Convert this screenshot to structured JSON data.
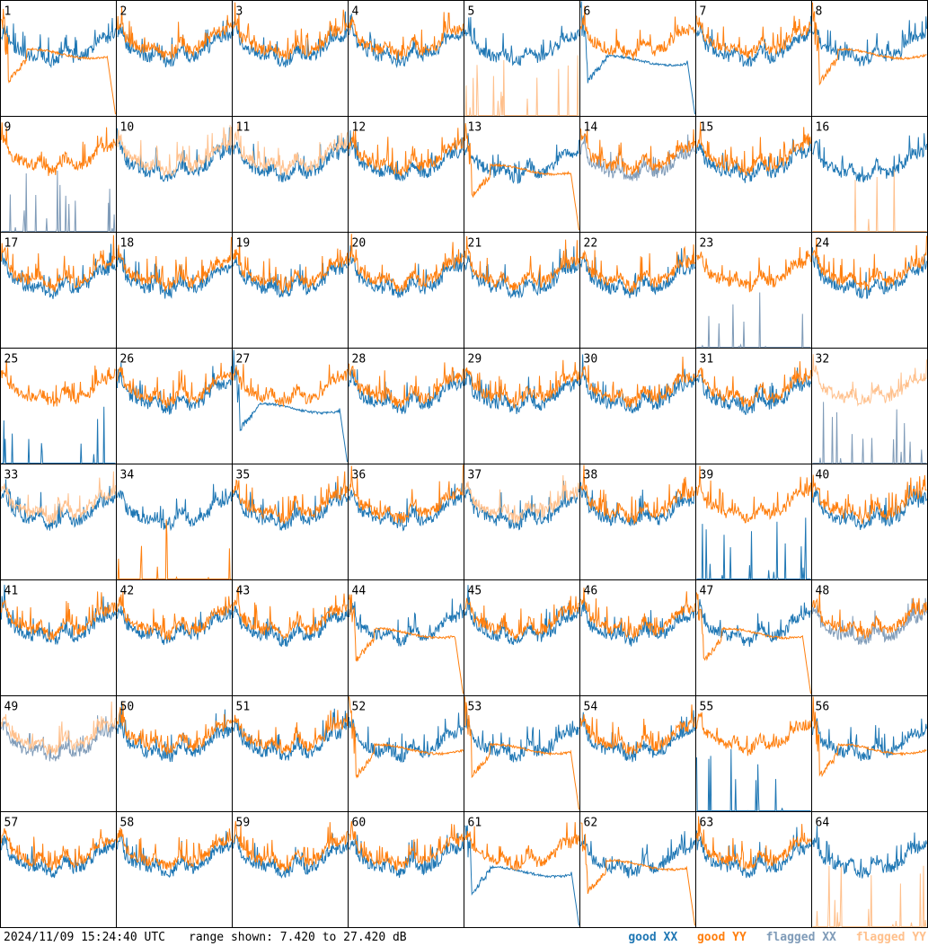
{
  "footer": {
    "timestamp": "2024/11/09 15:24:40 UTC",
    "range": "range shown: 7.420 to 27.420 dB"
  },
  "legend": {
    "good_xx": "good XX",
    "good_yy": "good YY",
    "flagged_xx": "flagged XX",
    "flagged_yy": "flagged YY"
  },
  "colors": {
    "good_xx": "#1f77b4",
    "good_yy": "#ff7f0e",
    "flagged_xx": "#7f9bb8",
    "flagged_yy": "#ffc08c"
  },
  "chart_data": {
    "type": "line",
    "layout": "8x8 small multiples",
    "ylim": [
      7.42,
      27.42
    ],
    "y_unit": "dB",
    "panels": [
      {
        "label": "1",
        "xx": "good",
        "yy": "good",
        "xx_shape": "spiky",
        "yy_shape": "flat_dip"
      },
      {
        "label": "2",
        "xx": "good",
        "yy": "good",
        "xx_shape": "spiky",
        "yy_shape": "spiky"
      },
      {
        "label": "3",
        "xx": "good",
        "yy": "good",
        "xx_shape": "spiky",
        "yy_shape": "spiky"
      },
      {
        "label": "4",
        "xx": "good",
        "yy": "good",
        "xx_shape": "spiky",
        "yy_shape": "spiky"
      },
      {
        "label": "5",
        "xx": "good",
        "yy": "flagged",
        "xx_shape": "spiky",
        "yy_shape": "low_spikes"
      },
      {
        "label": "6",
        "xx": "good",
        "yy": "good",
        "xx_shape": "flat_dip",
        "yy_shape": "spiky"
      },
      {
        "label": "7",
        "xx": "good",
        "yy": "good",
        "xx_shape": "spiky",
        "yy_shape": "spiky"
      },
      {
        "label": "8",
        "xx": "good",
        "yy": "good",
        "xx_shape": "spiky",
        "yy_shape": "flat"
      },
      {
        "label": "9",
        "xx": "flagged",
        "yy": "good",
        "xx_shape": "low_spikes",
        "yy_shape": "spiky"
      },
      {
        "label": "10",
        "xx": "good",
        "yy": "flagged",
        "xx_shape": "spiky",
        "yy_shape": "spiky"
      },
      {
        "label": "11",
        "xx": "good",
        "yy": "flagged",
        "xx_shape": "spiky",
        "yy_shape": "spiky"
      },
      {
        "label": "12",
        "xx": "good",
        "yy": "good",
        "xx_shape": "spiky",
        "yy_shape": "spiky"
      },
      {
        "label": "13",
        "xx": "good",
        "yy": "good",
        "xx_shape": "spiky",
        "yy_shape": "flat_dip"
      },
      {
        "label": "14",
        "xx": "flagged",
        "yy": "good",
        "xx_shape": "spiky",
        "yy_shape": "spiky"
      },
      {
        "label": "15",
        "xx": "good",
        "yy": "good",
        "xx_shape": "spiky",
        "yy_shape": "spiky"
      },
      {
        "label": "16",
        "xx": "good",
        "yy": "flagged",
        "xx_shape": "spiky",
        "yy_shape": "low_spikes"
      },
      {
        "label": "17",
        "xx": "good",
        "yy": "good",
        "xx_shape": "spiky",
        "yy_shape": "spiky"
      },
      {
        "label": "18",
        "xx": "good",
        "yy": "good",
        "xx_shape": "spiky",
        "yy_shape": "spiky"
      },
      {
        "label": "19",
        "xx": "good",
        "yy": "good",
        "xx_shape": "spiky",
        "yy_shape": "spiky"
      },
      {
        "label": "20",
        "xx": "good",
        "yy": "good",
        "xx_shape": "spiky",
        "yy_shape": "spiky"
      },
      {
        "label": "21",
        "xx": "good",
        "yy": "good",
        "xx_shape": "spiky",
        "yy_shape": "spiky"
      },
      {
        "label": "22",
        "xx": "good",
        "yy": "good",
        "xx_shape": "spiky",
        "yy_shape": "spiky"
      },
      {
        "label": "23",
        "xx": "flagged",
        "yy": "good",
        "xx_shape": "low_spikes",
        "yy_shape": "spiky"
      },
      {
        "label": "24",
        "xx": "good",
        "yy": "good",
        "xx_shape": "spiky",
        "yy_shape": "spiky"
      },
      {
        "label": "25",
        "xx": "good",
        "yy": "good",
        "xx_shape": "low_spikes",
        "yy_shape": "spiky"
      },
      {
        "label": "26",
        "xx": "good",
        "yy": "good",
        "xx_shape": "spiky",
        "yy_shape": "spiky"
      },
      {
        "label": "27",
        "xx": "good",
        "yy": "good",
        "xx_shape": "flat_dip",
        "yy_shape": "spiky"
      },
      {
        "label": "28",
        "xx": "good",
        "yy": "good",
        "xx_shape": "spiky",
        "yy_shape": "spiky"
      },
      {
        "label": "29",
        "xx": "good",
        "yy": "good",
        "xx_shape": "spiky",
        "yy_shape": "spiky"
      },
      {
        "label": "30",
        "xx": "good",
        "yy": "good",
        "xx_shape": "spiky",
        "yy_shape": "spiky"
      },
      {
        "label": "31",
        "xx": "good",
        "yy": "good",
        "xx_shape": "spiky",
        "yy_shape": "spiky"
      },
      {
        "label": "32",
        "xx": "flagged",
        "yy": "flagged",
        "xx_shape": "low_spikes",
        "yy_shape": "spiky"
      },
      {
        "label": "33",
        "xx": "good",
        "yy": "flagged",
        "xx_shape": "spiky",
        "yy_shape": "spiky"
      },
      {
        "label": "34",
        "xx": "good",
        "yy": "good",
        "xx_shape": "spiky",
        "yy_shape": "low_spikes"
      },
      {
        "label": "35",
        "xx": "good",
        "yy": "good",
        "xx_shape": "spiky",
        "yy_shape": "spiky"
      },
      {
        "label": "36",
        "xx": "good",
        "yy": "good",
        "xx_shape": "spiky",
        "yy_shape": "spiky"
      },
      {
        "label": "37",
        "xx": "good",
        "yy": "flagged",
        "xx_shape": "spiky",
        "yy_shape": "spiky"
      },
      {
        "label": "38",
        "xx": "good",
        "yy": "good",
        "xx_shape": "spiky",
        "yy_shape": "spiky"
      },
      {
        "label": "39",
        "xx": "good",
        "yy": "good",
        "xx_shape": "low_spikes",
        "yy_shape": "spiky"
      },
      {
        "label": "40",
        "xx": "good",
        "yy": "good",
        "xx_shape": "spiky",
        "yy_shape": "spiky"
      },
      {
        "label": "41",
        "xx": "good",
        "yy": "good",
        "xx_shape": "spiky",
        "yy_shape": "spiky"
      },
      {
        "label": "42",
        "xx": "good",
        "yy": "good",
        "xx_shape": "spiky",
        "yy_shape": "spiky"
      },
      {
        "label": "43",
        "xx": "good",
        "yy": "good",
        "xx_shape": "spiky",
        "yy_shape": "spiky"
      },
      {
        "label": "44",
        "xx": "good",
        "yy": "good",
        "xx_shape": "spiky",
        "yy_shape": "flat_dip"
      },
      {
        "label": "45",
        "xx": "good",
        "yy": "good",
        "xx_shape": "spiky",
        "yy_shape": "spiky"
      },
      {
        "label": "46",
        "xx": "good",
        "yy": "good",
        "xx_shape": "spiky",
        "yy_shape": "spiky"
      },
      {
        "label": "47",
        "xx": "good",
        "yy": "good",
        "xx_shape": "spiky",
        "yy_shape": "flat_dip"
      },
      {
        "label": "48",
        "xx": "flagged",
        "yy": "good",
        "xx_shape": "spiky",
        "yy_shape": "spiky"
      },
      {
        "label": "49",
        "xx": "flagged",
        "yy": "flagged",
        "xx_shape": "spiky",
        "yy_shape": "spiky"
      },
      {
        "label": "50",
        "xx": "good",
        "yy": "good",
        "xx_shape": "spiky",
        "yy_shape": "spiky"
      },
      {
        "label": "51",
        "xx": "good",
        "yy": "good",
        "xx_shape": "spiky",
        "yy_shape": "spiky"
      },
      {
        "label": "52",
        "xx": "good",
        "yy": "good",
        "xx_shape": "spiky",
        "yy_shape": "flat"
      },
      {
        "label": "53",
        "xx": "good",
        "yy": "good",
        "xx_shape": "spiky",
        "yy_shape": "flat_dip"
      },
      {
        "label": "54",
        "xx": "good",
        "yy": "good",
        "xx_shape": "spiky",
        "yy_shape": "spiky"
      },
      {
        "label": "55",
        "xx": "good",
        "yy": "good",
        "xx_shape": "low_spikes",
        "yy_shape": "spiky"
      },
      {
        "label": "56",
        "xx": "good",
        "yy": "good",
        "xx_shape": "spiky",
        "yy_shape": "flat"
      },
      {
        "label": "57",
        "xx": "good",
        "yy": "good",
        "xx_shape": "spiky",
        "yy_shape": "spiky"
      },
      {
        "label": "58",
        "xx": "good",
        "yy": "good",
        "xx_shape": "spiky",
        "yy_shape": "spiky"
      },
      {
        "label": "59",
        "xx": "good",
        "yy": "good",
        "xx_shape": "spiky",
        "yy_shape": "spiky"
      },
      {
        "label": "60",
        "xx": "good",
        "yy": "good",
        "xx_shape": "spiky",
        "yy_shape": "spiky"
      },
      {
        "label": "61",
        "xx": "good",
        "yy": "good",
        "xx_shape": "flat_dip",
        "yy_shape": "spiky"
      },
      {
        "label": "62",
        "xx": "good",
        "yy": "good",
        "xx_shape": "spiky",
        "yy_shape": "flat_dip"
      },
      {
        "label": "63",
        "xx": "good",
        "yy": "good",
        "xx_shape": "spiky",
        "yy_shape": "spiky"
      },
      {
        "label": "64",
        "xx": "good",
        "yy": "flagged",
        "xx_shape": "spiky",
        "yy_shape": "low_spikes"
      }
    ]
  }
}
